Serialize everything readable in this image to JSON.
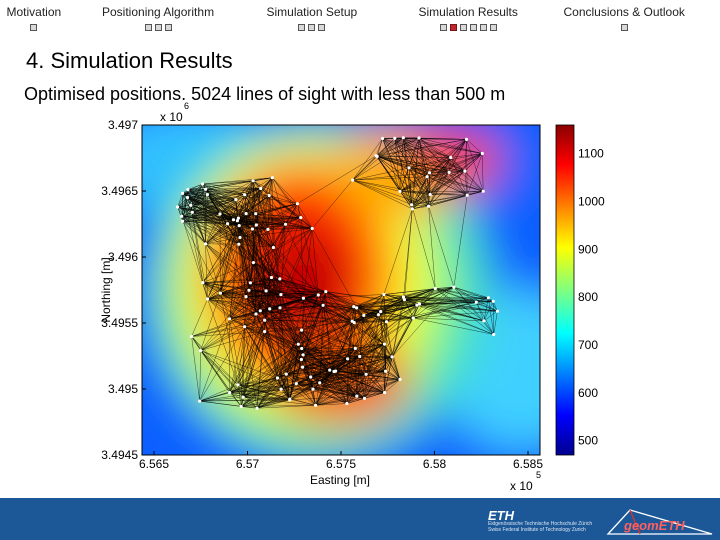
{
  "nav": {
    "sections": [
      {
        "label": "Motivation",
        "dots": 1,
        "active": -1
      },
      {
        "label": "Positioning Algorithm",
        "dots": 3,
        "active": -1
      },
      {
        "label": "Simulation Setup",
        "dots": 3,
        "active": -1
      },
      {
        "label": "Simulation Results",
        "dots": 6,
        "active": 1
      },
      {
        "label": "Conclusions & Outlook",
        "dots": 1,
        "active": -1
      }
    ]
  },
  "slide": {
    "title": "4. Simulation Results",
    "subtitle": "Optimised positions. 5024 lines of sight with less than 500 m"
  },
  "chart_data": {
    "type": "heatmap",
    "xlabel": "Easting [m]",
    "ylabel": "Northing [m]",
    "x_ticks": [
      "6.565",
      "6.57",
      "6.575",
      "6.58",
      "6.585"
    ],
    "x_multiplier": "x 10",
    "x_multiplier_exp": "5",
    "y_ticks": [
      "3.4945",
      "3.495",
      "3.4955",
      "3.496",
      "3.4965",
      "3.497"
    ],
    "y_multiplier": "x 10",
    "y_multiplier_exp": "6",
    "colorbar_ticks": [
      "1100",
      "1000",
      "900",
      "800",
      "700",
      "600",
      "500"
    ],
    "colorbar_range": [
      470,
      1160
    ],
    "annotation_count": "5024",
    "colors": {
      "low": "#00008f",
      "mid": "#7fff7f",
      "high": "#8b0000"
    }
  },
  "footer": {
    "eth_logo": "ETH",
    "eth_text": "Eidgenössische Technische Hochschule Zürich Swiss Federal Institute of Technology Zurich",
    "geom_logo": "geomETH"
  }
}
